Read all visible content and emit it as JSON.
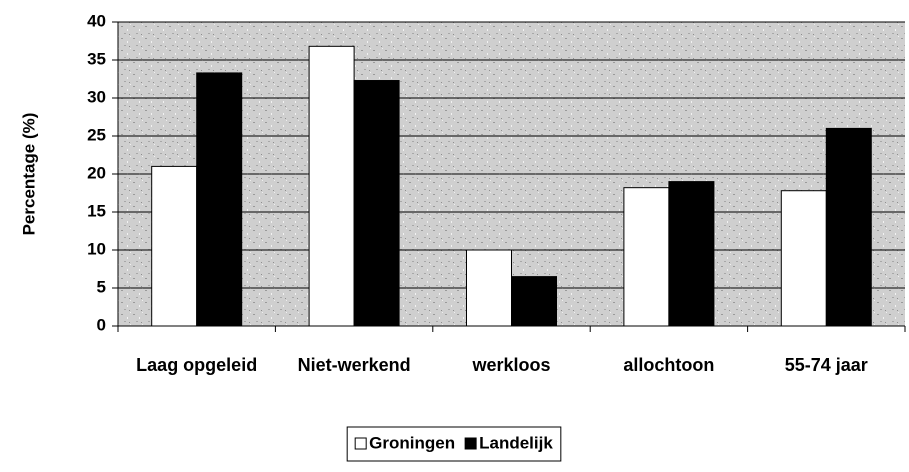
{
  "chart_data": {
    "type": "bar",
    "y_label": "Percentage (%)",
    "categories": [
      "Laag opgeleid",
      "Niet-werkend",
      "werkloos",
      "allochtoon",
      "55-74 jaar"
    ],
    "series": [
      {
        "name": "Groningen",
        "color": "#ffffff",
        "values": [
          21,
          36.8,
          10,
          18.2,
          17.8
        ]
      },
      {
        "name": "Landelijk",
        "color": "#000000",
        "values": [
          33.3,
          32.3,
          6.5,
          19,
          26
        ]
      }
    ],
    "ylim": [
      0,
      40
    ],
    "yticks": [
      0,
      5,
      10,
      15,
      20,
      25,
      30,
      35,
      40
    ],
    "grid": true,
    "legend": "bottom"
  }
}
